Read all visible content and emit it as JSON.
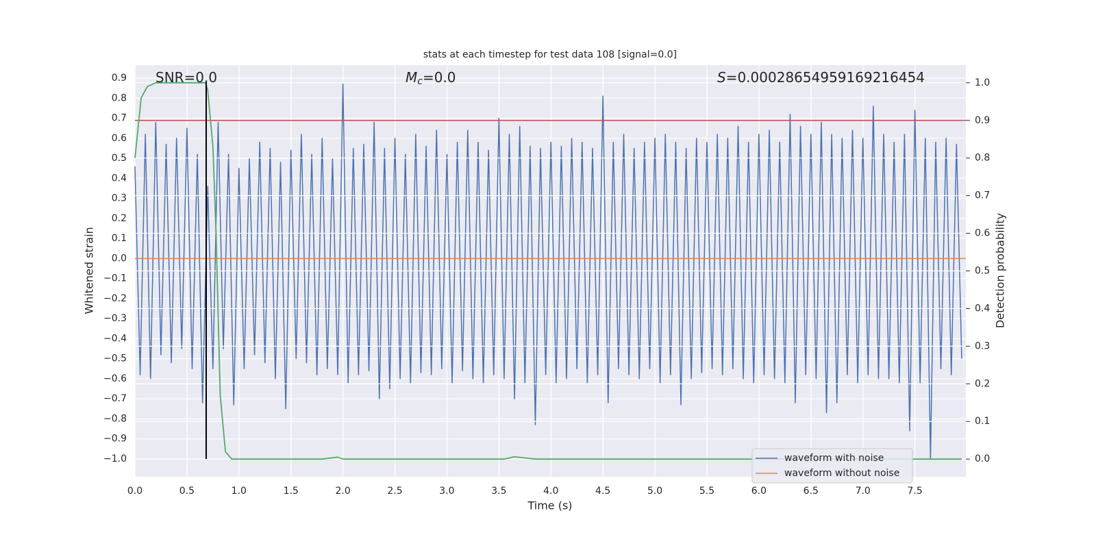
{
  "chart_data": {
    "type": "line",
    "title": "stats at each timestep for test data 108 [signal=0.0]",
    "xlabel": "Time (s)",
    "ylabel": "Whitened strain",
    "y2label": "Detection probability",
    "xlim": [
      0,
      7.99
    ],
    "ylim": [
      -1.089,
      0.965
    ],
    "y2lim": [
      -0.047,
      1.047
    ],
    "xticks": [
      {
        "value": 0,
        "label": "0.0"
      },
      {
        "value": 0.5,
        "label": "0.5"
      },
      {
        "value": 1,
        "label": "1.0"
      },
      {
        "value": 1.5,
        "label": "1.5"
      },
      {
        "value": 2,
        "label": "2.0"
      },
      {
        "value": 2.5,
        "label": "2.5"
      },
      {
        "value": 3,
        "label": "3.0"
      },
      {
        "value": 3.5,
        "label": "3.5"
      },
      {
        "value": 4,
        "label": "4.0"
      },
      {
        "value": 4.5,
        "label": "4.5"
      },
      {
        "value": 5,
        "label": "5.0"
      },
      {
        "value": 5.5,
        "label": "5.5"
      },
      {
        "value": 6,
        "label": "6.0"
      },
      {
        "value": 6.5,
        "label": "6.5"
      },
      {
        "value": 7,
        "label": "7.0"
      },
      {
        "value": 7.5,
        "label": "7.5"
      }
    ],
    "yticks": [
      {
        "value": -1,
        "label": "−1.0"
      },
      {
        "value": -0.9,
        "label": "−0.9"
      },
      {
        "value": -0.8,
        "label": "−0.8"
      },
      {
        "value": -0.7,
        "label": "−0.7"
      },
      {
        "value": -0.6,
        "label": "−0.6"
      },
      {
        "value": -0.5,
        "label": "−0.5"
      },
      {
        "value": -0.4,
        "label": "−0.4"
      },
      {
        "value": -0.3,
        "label": "−0.3"
      },
      {
        "value": -0.2,
        "label": "−0.2"
      },
      {
        "value": -0.1,
        "label": "−0.1"
      },
      {
        "value": 0,
        "label": "0.0"
      },
      {
        "value": 0.1,
        "label": "0.1"
      },
      {
        "value": 0.2,
        "label": "0.2"
      },
      {
        "value": 0.3,
        "label": "0.3"
      },
      {
        "value": 0.4,
        "label": "0.4"
      },
      {
        "value": 0.5,
        "label": "0.5"
      },
      {
        "value": 0.6,
        "label": "0.6"
      },
      {
        "value": 0.7,
        "label": "0.7"
      },
      {
        "value": 0.8,
        "label": "0.8"
      },
      {
        "value": 0.9,
        "label": "0.9"
      }
    ],
    "y2ticks": [
      {
        "value": 0,
        "label": "0.0"
      },
      {
        "value": 0.1,
        "label": "0.1"
      },
      {
        "value": 0.2,
        "label": "0.2"
      },
      {
        "value": 0.3,
        "label": "0.3"
      },
      {
        "value": 0.4,
        "label": "0.4"
      },
      {
        "value": 0.5,
        "label": "0.5"
      },
      {
        "value": 0.6,
        "label": "0.6"
      },
      {
        "value": 0.7,
        "label": "0.7"
      },
      {
        "value": 0.8,
        "label": "0.8"
      },
      {
        "value": 0.9,
        "label": "0.9"
      },
      {
        "value": 1,
        "label": "1.0"
      }
    ],
    "grid": true,
    "legend": "lower right",
    "annotations": [
      {
        "text": "SNR=0.0"
      },
      {
        "symbol": "M",
        "subscript": "c",
        "text": "=0.0"
      },
      {
        "symbol": "S",
        "text": "=0.00028654959169216454"
      }
    ],
    "series": [
      {
        "name": "waveform with noise",
        "color": "#4c72b0",
        "x": [
          0,
          0.05,
          0.1,
          0.15,
          0.2,
          0.25,
          0.3,
          0.35,
          0.4,
          0.45,
          0.5,
          0.55,
          0.6,
          0.65,
          0.7,
          0.75,
          0.8,
          0.85,
          0.9,
          0.95,
          1,
          1.05,
          1.1,
          1.15,
          1.2,
          1.25,
          1.3,
          1.35,
          1.4,
          1.45,
          1.5,
          1.55,
          1.6,
          1.65,
          1.7,
          1.75,
          1.8,
          1.85,
          1.9,
          1.95,
          2,
          2.05,
          2.1,
          2.15,
          2.2,
          2.25,
          2.3,
          2.35,
          2.4,
          2.45,
          2.5,
          2.55,
          2.6,
          2.65,
          2.7,
          2.75,
          2.8,
          2.85,
          2.9,
          2.95,
          3,
          3.05,
          3.1,
          3.15,
          3.2,
          3.25,
          3.3,
          3.35,
          3.4,
          3.45,
          3.5,
          3.55,
          3.6,
          3.65,
          3.7,
          3.75,
          3.8,
          3.85,
          3.9,
          3.95,
          4,
          4.05,
          4.1,
          4.15,
          4.2,
          4.25,
          4.3,
          4.35,
          4.4,
          4.45,
          4.5,
          4.55,
          4.6,
          4.65,
          4.7,
          4.75,
          4.8,
          4.85,
          4.9,
          4.95,
          5,
          5.05,
          5.1,
          5.15,
          5.2,
          5.25,
          5.3,
          5.35,
          5.4,
          5.45,
          5.5,
          5.55,
          5.6,
          5.65,
          5.7,
          5.75,
          5.8,
          5.85,
          5.9,
          5.95,
          6,
          6.05,
          6.1,
          6.15,
          6.2,
          6.25,
          6.3,
          6.35,
          6.4,
          6.45,
          6.5,
          6.55,
          6.6,
          6.65,
          6.7,
          6.75,
          6.8,
          6.85,
          6.9,
          6.95,
          7,
          7.05,
          7.1,
          7.15,
          7.2,
          7.25,
          7.3,
          7.35,
          7.4,
          7.45,
          7.5,
          7.55,
          7.6,
          7.65,
          7.7,
          7.75,
          7.8,
          7.85,
          7.9,
          7.95
        ],
        "values": [
          0.46,
          -0.58,
          0.62,
          -0.6,
          0.68,
          -0.48,
          0.57,
          -0.52,
          0.6,
          -0.45,
          0.65,
          -0.55,
          0.52,
          -0.72,
          0.36,
          -0.55,
          0.68,
          -0.45,
          0.52,
          -0.73,
          0.45,
          -0.55,
          0.5,
          -0.48,
          0.58,
          -0.52,
          0.55,
          -0.6,
          0.48,
          -0.75,
          0.54,
          -0.5,
          0.62,
          -0.52,
          0.52,
          -0.58,
          0.6,
          -0.55,
          0.5,
          -0.58,
          0.87,
          -0.62,
          0.55,
          -0.58,
          0.57,
          -0.56,
          0.68,
          -0.7,
          0.55,
          -0.65,
          0.6,
          -0.6,
          0.52,
          -0.62,
          0.62,
          -0.57,
          0.56,
          -0.58,
          0.64,
          -0.55,
          0.52,
          -0.62,
          0.58,
          -0.56,
          0.64,
          -0.6,
          0.58,
          -0.62,
          0.54,
          -0.58,
          0.7,
          -0.6,
          0.62,
          -0.7,
          0.66,
          -0.62,
          0.56,
          -0.83,
          0.55,
          -0.58,
          0.58,
          -0.62,
          0.56,
          -0.6,
          0.6,
          -0.55,
          0.58,
          -0.62,
          0.55,
          -0.58,
          0.81,
          -0.72,
          0.58,
          -0.55,
          0.62,
          -0.58,
          0.55,
          -0.6,
          0.58,
          -0.55,
          0.6,
          -0.62,
          0.62,
          -0.58,
          0.58,
          -0.73,
          0.55,
          -0.6,
          0.6,
          -0.57,
          0.58,
          -0.55,
          0.62,
          -0.58,
          0.6,
          -0.55,
          0.66,
          -0.6,
          0.58,
          -0.62,
          0.62,
          -0.58,
          0.64,
          -0.6,
          0.58,
          -0.62,
          0.72,
          -0.72,
          0.66,
          -0.58,
          0.62,
          -0.6,
          0.68,
          -0.77,
          0.62,
          -0.72,
          0.6,
          -0.58,
          0.64,
          -0.62,
          0.6,
          -0.58,
          0.76,
          -0.6,
          0.62,
          -0.6,
          0.58,
          -0.62,
          0.62,
          -0.86,
          0.74,
          -0.62,
          0.6,
          -1,
          0.58,
          -0.55,
          0.6,
          -0.58,
          0.57,
          -0.5
        ]
      },
      {
        "name": "waveform without noise",
        "color": "#dd8452",
        "x": [
          0,
          7.99
        ],
        "values": [
          0,
          0
        ]
      },
      {
        "axis": "y2",
        "color": "#55a868",
        "x": [
          0,
          0.06,
          0.12,
          0.2,
          0.68,
          0.7,
          0.75,
          0.78,
          0.82,
          0.87,
          0.93,
          1.5,
          1.8,
          1.95,
          2.0,
          3.55,
          3.65,
          3.75,
          3.85,
          7.95
        ],
        "values": [
          0.8,
          0.96,
          0.99,
          1.0,
          1.0,
          0.98,
          0.83,
          0.6,
          0.17,
          0.02,
          0.0,
          0.0,
          0.0,
          0.005,
          0.0,
          0.0,
          0.006,
          0.003,
          0.0,
          0.0
        ]
      }
    ],
    "hlines": [
      {
        "value": 0.9,
        "axis": "y2",
        "color": "#c44e52"
      }
    ],
    "vlines": [
      {
        "x": 0.685,
        "ymin": -1.0,
        "ymax": 0.88,
        "color": "#000000"
      }
    ]
  }
}
